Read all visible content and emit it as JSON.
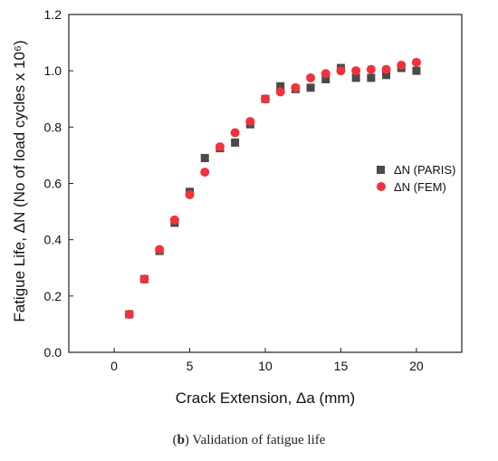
{
  "caption": {
    "tag": "b",
    "text": ") Validation of fatigue life"
  },
  "chart_data": {
    "type": "scatter",
    "xlabel": "Crack Extension, Δa (mm)",
    "ylabel": "Fatigue Life, ΔN (No of load cycles x 10⁶)",
    "xlim": [
      -3,
      23
    ],
    "ylim": [
      0,
      1.2
    ],
    "xticks": [
      0,
      5,
      10,
      15,
      20
    ],
    "yticks": [
      0.0,
      0.2,
      0.4,
      0.6,
      0.8,
      1.0,
      1.2
    ],
    "legend_position": "right-middle",
    "series": [
      {
        "name": "ΔN (PARIS)",
        "marker": "square",
        "color": "#4a4a4a",
        "x": [
          1,
          2,
          3,
          4,
          5,
          6,
          7,
          8,
          9,
          10,
          11,
          12,
          13,
          14,
          15,
          16,
          17,
          18,
          19,
          20
        ],
        "y": [
          0.135,
          0.26,
          0.36,
          0.46,
          0.57,
          0.69,
          0.725,
          0.745,
          0.81,
          0.9,
          0.945,
          0.935,
          0.94,
          0.97,
          1.01,
          0.975,
          0.975,
          0.985,
          1.01,
          1.0
        ]
      },
      {
        "name": "ΔN (FEM)",
        "marker": "circle",
        "color": "#f0323c",
        "x": [
          1,
          2,
          3,
          4,
          5,
          6,
          7,
          8,
          9,
          10,
          11,
          12,
          13,
          14,
          15,
          16,
          17,
          18,
          19,
          20
        ],
        "y": [
          0.135,
          0.26,
          0.365,
          0.47,
          0.56,
          0.64,
          0.73,
          0.78,
          0.82,
          0.9,
          0.925,
          0.94,
          0.975,
          0.99,
          1.0,
          1.0,
          1.005,
          1.005,
          1.02,
          1.03
        ]
      }
    ]
  }
}
